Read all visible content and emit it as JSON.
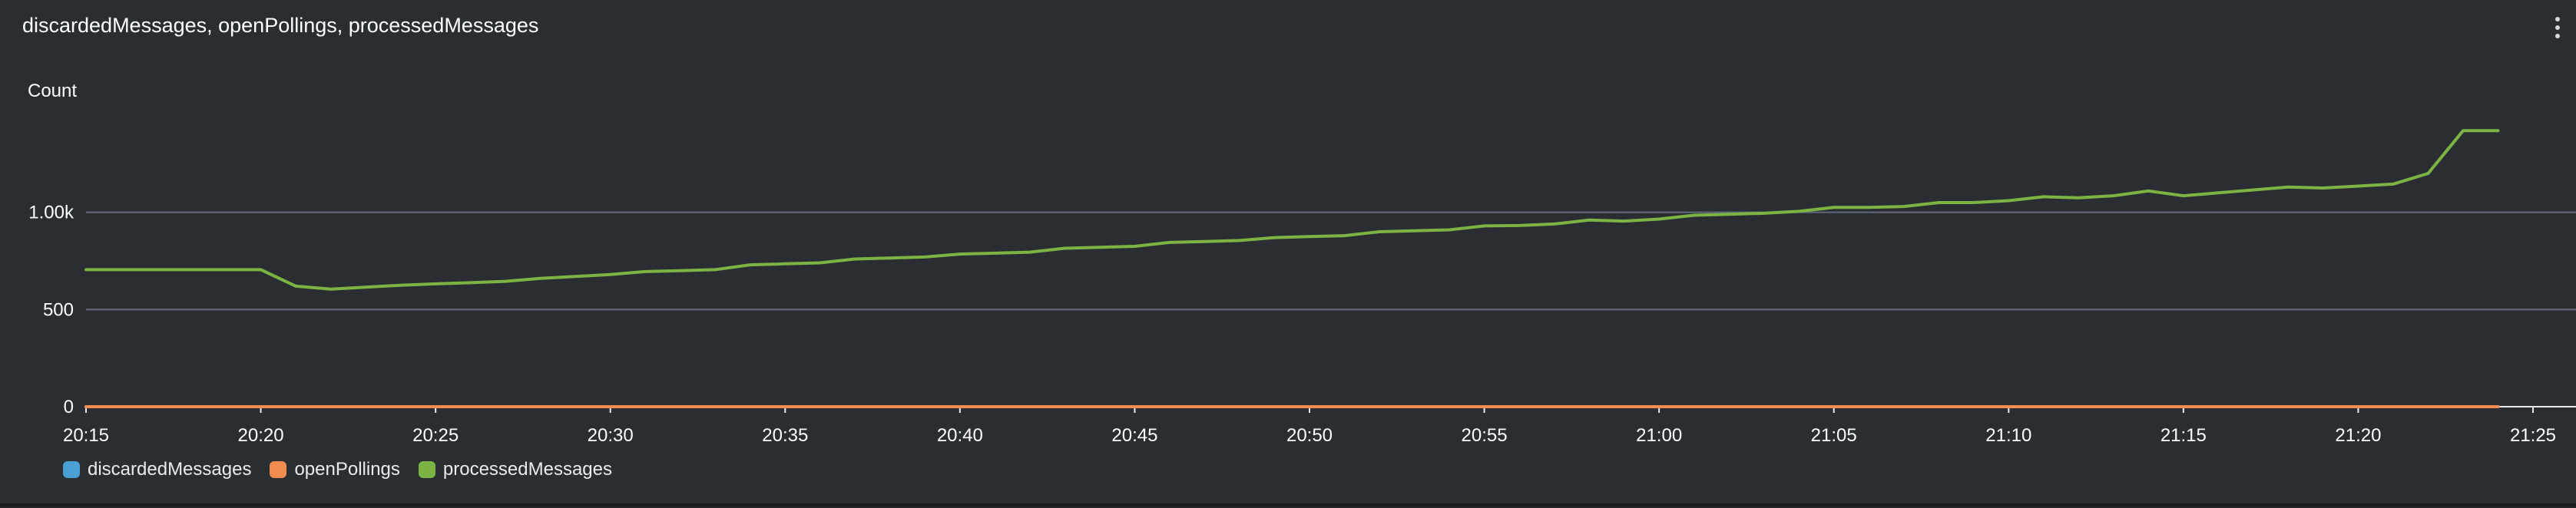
{
  "panel": {
    "title": "discardedMessages, openPollings, processedMessages"
  },
  "chart_data": {
    "type": "line",
    "title": "discardedMessages, openPollings, processedMessages",
    "ylabel": "Count",
    "xlabel": "",
    "ylim": [
      0,
      1500
    ],
    "yticks": [
      {
        "value": 0,
        "label": "0"
      },
      {
        "value": 500,
        "label": "500"
      },
      {
        "value": 1000,
        "label": "1.00k"
      }
    ],
    "x_tick_labels": [
      "20:15",
      "20:20",
      "20:25",
      "20:30",
      "20:35",
      "20:40",
      "20:45",
      "20:50",
      "20:55",
      "21:00",
      "21:05",
      "21:10",
      "21:15",
      "21:20",
      "21:25"
    ],
    "x_range": [
      "20:15",
      "21:25"
    ],
    "grid": true,
    "legend_position": "bottom-left",
    "x": [
      "20:15",
      "20:16",
      "20:17",
      "20:18",
      "20:19",
      "20:20",
      "20:21",
      "20:22",
      "20:23",
      "20:24",
      "20:25",
      "20:26",
      "20:27",
      "20:28",
      "20:29",
      "20:30",
      "20:31",
      "20:32",
      "20:33",
      "20:34",
      "20:35",
      "20:36",
      "20:37",
      "20:38",
      "20:39",
      "20:40",
      "20:41",
      "20:42",
      "20:43",
      "20:44",
      "20:45",
      "20:46",
      "20:47",
      "20:48",
      "20:49",
      "20:50",
      "20:51",
      "20:52",
      "20:53",
      "20:54",
      "20:55",
      "20:56",
      "20:57",
      "20:58",
      "20:59",
      "21:00",
      "21:01",
      "21:02",
      "21:03",
      "21:04",
      "21:05",
      "21:06",
      "21:07",
      "21:08",
      "21:09",
      "21:10",
      "21:11",
      "21:12",
      "21:13",
      "21:14",
      "21:15",
      "21:16",
      "21:17",
      "21:18",
      "21:19",
      "21:20",
      "21:21",
      "21:22",
      "21:23",
      "21:24"
    ],
    "series": [
      {
        "name": "discardedMessages",
        "color": "#4aa0d5",
        "values": [
          0,
          0,
          0,
          0,
          0,
          0,
          0,
          0,
          0,
          0,
          0,
          0,
          0,
          0,
          0,
          0,
          0,
          0,
          0,
          0,
          0,
          0,
          0,
          0,
          0,
          0,
          0,
          0,
          0,
          0,
          0,
          0,
          0,
          0,
          0,
          0,
          0,
          0,
          0,
          0,
          0,
          0,
          0,
          0,
          0,
          0,
          0,
          0,
          0,
          0,
          0,
          0,
          0,
          0,
          0,
          0,
          0,
          0,
          0,
          0,
          0,
          0,
          0,
          0,
          0,
          0,
          0,
          0,
          0,
          0
        ]
      },
      {
        "name": "openPollings",
        "color": "#f28c4f",
        "values": [
          0,
          0,
          0,
          0,
          0,
          0,
          0,
          0,
          0,
          0,
          0,
          0,
          0,
          0,
          0,
          0,
          0,
          0,
          0,
          0,
          0,
          0,
          0,
          0,
          0,
          0,
          0,
          0,
          0,
          0,
          0,
          0,
          0,
          0,
          0,
          0,
          0,
          0,
          0,
          0,
          0,
          0,
          0,
          0,
          0,
          0,
          0,
          0,
          0,
          0,
          0,
          0,
          0,
          0,
          0,
          0,
          0,
          0,
          0,
          0,
          0,
          0,
          0,
          0,
          0,
          0,
          0,
          0,
          0,
          0
        ]
      },
      {
        "name": "processedMessages",
        "color": "#7cb342",
        "values": [
          705,
          705,
          705,
          705,
          705,
          705,
          620,
          605,
          615,
          625,
          632,
          638,
          645,
          660,
          670,
          680,
          695,
          700,
          705,
          730,
          735,
          740,
          760,
          765,
          770,
          785,
          790,
          795,
          815,
          820,
          825,
          845,
          850,
          855,
          870,
          875,
          880,
          900,
          905,
          910,
          930,
          932,
          940,
          960,
          955,
          965,
          985,
          990,
          995,
          1005,
          1025,
          1025,
          1030,
          1050,
          1050,
          1060,
          1080,
          1075,
          1085,
          1110,
          1085,
          1100,
          1115,
          1130,
          1125,
          1135,
          1145,
          1200,
          1420,
          1420
        ]
      }
    ]
  }
}
